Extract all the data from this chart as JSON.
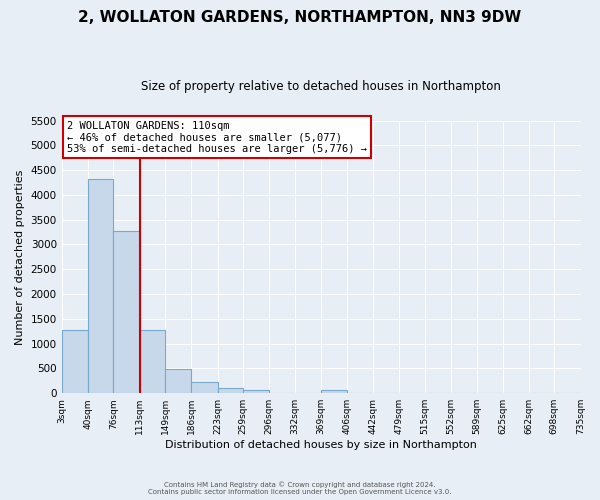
{
  "title": "2, WOLLATON GARDENS, NORTHAMPTON, NN3 9DW",
  "subtitle": "Size of property relative to detached houses in Northampton",
  "xlabel": "Distribution of detached houses by size in Northampton",
  "ylabel": "Number of detached properties",
  "bin_edges": [
    3,
    40,
    76,
    113,
    149,
    186,
    223,
    259,
    296,
    332,
    369,
    406,
    442,
    479,
    515,
    552,
    589,
    625,
    662,
    698,
    735
  ],
  "bin_counts": [
    1270,
    4330,
    3280,
    1280,
    480,
    230,
    95,
    65,
    0,
    0,
    55,
    0,
    0,
    0,
    0,
    0,
    0,
    0,
    0,
    0
  ],
  "bar_color": "#c8d8eb",
  "bar_edge_color": "#7aa8cc",
  "vline_x": 113,
  "vline_color": "#cc0000",
  "ylim": [
    0,
    5500
  ],
  "yticks": [
    0,
    500,
    1000,
    1500,
    2000,
    2500,
    3000,
    3500,
    4000,
    4500,
    5000,
    5500
  ],
  "annotation_title": "2 WOLLATON GARDENS: 110sqm",
  "annotation_line1": "← 46% of detached houses are smaller (5,077)",
  "annotation_line2": "53% of semi-detached houses are larger (5,776) →",
  "annotation_box_facecolor": "#ffffff",
  "annotation_box_edgecolor": "#cc0000",
  "footer1": "Contains HM Land Registry data © Crown copyright and database right 2024.",
  "footer2": "Contains public sector information licensed under the Open Government Licence v3.0.",
  "background_color": "#e8eef5",
  "grid_color": "#ffffff",
  "tick_labels": [
    "3sqm",
    "40sqm",
    "76sqm",
    "113sqm",
    "149sqm",
    "186sqm",
    "223sqm",
    "259sqm",
    "296sqm",
    "332sqm",
    "369sqm",
    "406sqm",
    "442sqm",
    "479sqm",
    "515sqm",
    "552sqm",
    "589sqm",
    "625sqm",
    "662sqm",
    "698sqm",
    "735sqm"
  ]
}
